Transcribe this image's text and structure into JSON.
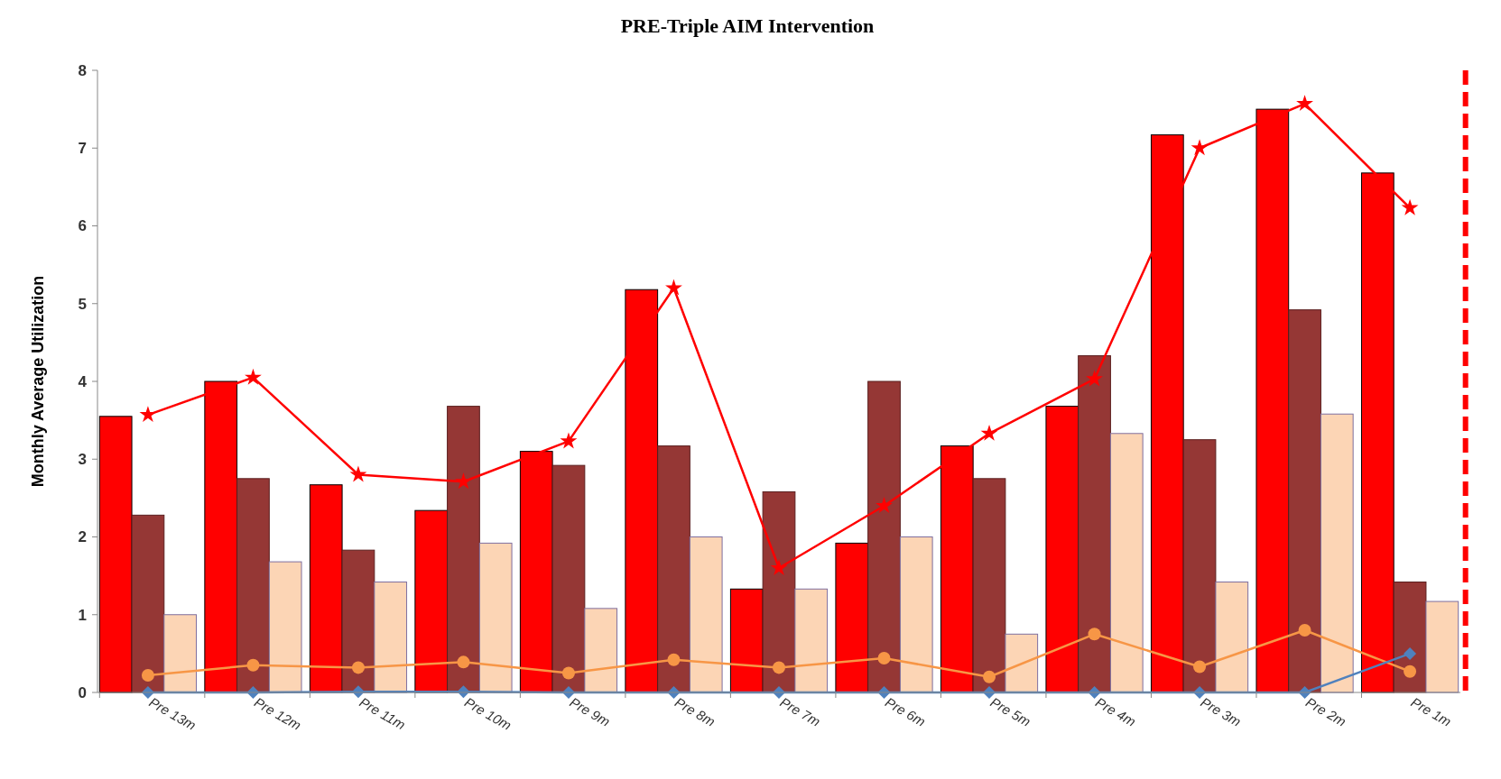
{
  "chart_data": {
    "type": "bar",
    "title": "PRE-Triple AIM Intervention",
    "ylabel": "Monthly Average Utilization",
    "categories": [
      "Pre 13m",
      "Pre 12m",
      "Pre 11m",
      "Pre 10m",
      "Pre 9m",
      "Pre 8m",
      "Pre 7m",
      "Pre 6m",
      "Pre 5m",
      "Pre 4m",
      "Pre 3m",
      "Pre 2m",
      "Pre 1m"
    ],
    "series": [
      {
        "color": "#ff0000",
        "values": [
          3.55,
          4.0,
          2.67,
          2.34,
          3.1,
          5.18,
          1.33,
          1.92,
          3.17,
          3.68,
          7.17,
          7.5,
          6.68
        ]
      },
      {
        "color": "#953735",
        "values": [
          2.28,
          2.75,
          1.83,
          3.68,
          2.92,
          3.17,
          2.58,
          4.0,
          2.75,
          4.33,
          3.25,
          4.92,
          1.42
        ]
      },
      {
        "color": "#fcd5b5",
        "values": [
          1.0,
          1.68,
          1.42,
          1.92,
          1.08,
          2.0,
          1.33,
          2.0,
          0.75,
          3.33,
          1.42,
          3.58,
          1.17
        ]
      },
      {
        "type": "line",
        "color": "#ff0000",
        "marker": "star",
        "values": [
          3.57,
          4.05,
          2.8,
          2.71,
          3.23,
          5.2,
          1.6,
          2.4,
          3.33,
          4.03,
          7.0,
          7.57,
          6.23
        ]
      },
      {
        "type": "line",
        "color": "#f79646",
        "marker": "circle",
        "values": [
          0.22,
          0.35,
          0.32,
          0.39,
          0.25,
          0.42,
          0.32,
          0.44,
          0.2,
          0.75,
          0.33,
          0.8,
          0.27
        ]
      },
      {
        "type": "line",
        "color": "#4f81bd",
        "marker": "diamond",
        "values": [
          0,
          0,
          0.01,
          0.01,
          0,
          0,
          0,
          0,
          0,
          0,
          0,
          0,
          0.5
        ]
      }
    ],
    "ylim": [
      0,
      8
    ],
    "yticks": [
      0,
      1,
      2,
      3,
      4,
      5,
      6,
      7,
      8
    ],
    "grid": false,
    "legend": false,
    "ref_lines": [
      {
        "axis": "x",
        "value": "Pre 1m",
        "color": "#ff0000",
        "line_style": "dashed"
      }
    ]
  }
}
